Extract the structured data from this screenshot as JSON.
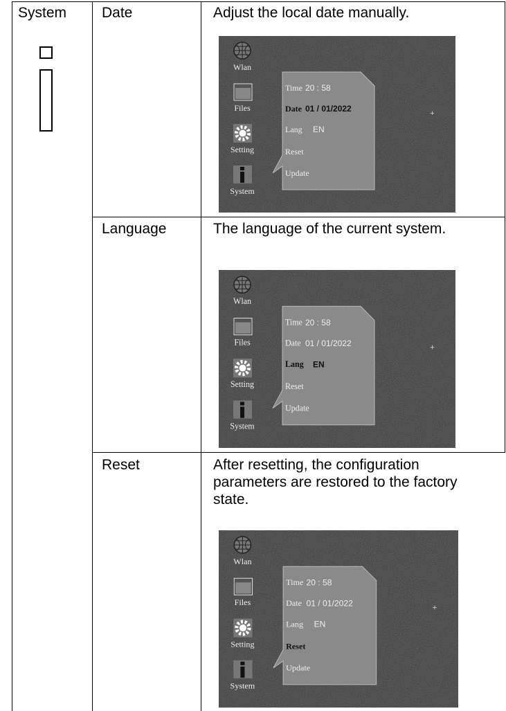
{
  "table": {
    "category": "System",
    "rows": [
      {
        "feature": "Date",
        "description": "Adjust the local date manually.",
        "screen": {
          "sidebar": [
            "Wlan",
            "Files",
            "Setting",
            "System"
          ],
          "menu": [
            {
              "label": "Time",
              "value": "20 : 58"
            },
            {
              "label": "Date",
              "value": "01 / 01/2022"
            },
            {
              "label": "Lang",
              "value": "EN"
            },
            {
              "label": "Reset"
            },
            {
              "label": "Update"
            }
          ],
          "selected": 1
        }
      },
      {
        "feature": "Language",
        "description": "The language of the current system.",
        "screen": {
          "sidebar": [
            "Wlan",
            "Files",
            "Setting",
            "System"
          ],
          "menu": [
            {
              "label": "Time",
              "value": "20 : 58"
            },
            {
              "label": "Date",
              "value": "01 / 01/2022"
            },
            {
              "label": "Lang",
              "value": "EN"
            },
            {
              "label": "Reset"
            },
            {
              "label": "Update"
            }
          ],
          "selected": 2
        }
      },
      {
        "feature": "Reset",
        "description": "After resetting, the configuration parameters are restored to the factory state.",
        "screen": {
          "sidebar": [
            "Wlan",
            "Files",
            "Setting",
            "System"
          ],
          "menu": [
            {
              "label": "Time",
              "value": "20 : 58"
            },
            {
              "label": "Date",
              "value": "01 / 01/2022"
            },
            {
              "label": "Lang",
              "value": "EN"
            },
            {
              "label": "Reset"
            },
            {
              "label": "Update"
            }
          ],
          "selected": 3
        }
      }
    ]
  }
}
